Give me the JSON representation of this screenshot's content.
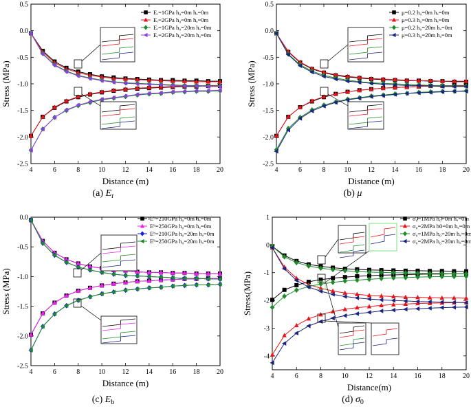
{
  "chart_data": [
    {
      "type": "line",
      "caption": "(a) Eᵣ",
      "caption_prefix": "(a) ",
      "caption_symbol": "E",
      "caption_sub": "r",
      "xlabel": "Distance (m)",
      "ylabel": "Stress (MPa)",
      "xlim": [
        4,
        20
      ],
      "ylim": [
        -2.5,
        0.5
      ],
      "xticks": [
        4,
        6,
        8,
        10,
        12,
        14,
        16,
        18,
        20
      ],
      "yticks": [
        0.5,
        0.0,
        -0.5,
        -1.0,
        -1.5,
        -2.0,
        -2.5
      ],
      "yticklabels": [
        "0.5",
        "0.0",
        "-0.5",
        "-1.0",
        "-1.5",
        "-2.0",
        "-2.5"
      ],
      "legend": [
        "Eᵣ=1GPa h₀=0m hₐ=0m",
        "Eᵣ=2GPa h₀=0m hₐ=0m",
        "Eᵣ=1GPa h₀=20m hₐ=0m",
        "Eᵣ=2GPa h₀=20m hₐ=0m"
      ],
      "x": [
        4,
        5,
        6,
        7,
        8,
        9,
        10,
        11,
        12,
        13,
        14,
        15,
        16,
        17,
        18,
        19,
        20
      ],
      "series": [
        {
          "name": "Eᵣ=1GPa h₀=0m hₐ=0m",
          "color": "#000000",
          "marker": "square",
          "upper": [
            -0.05,
            -0.38,
            -0.58,
            -0.7,
            -0.77,
            -0.82,
            -0.86,
            -0.88,
            -0.9,
            -0.91,
            -0.92,
            -0.93,
            -0.93,
            -0.94,
            -0.94,
            -0.95,
            -0.95
          ],
          "lower": [
            -1.98,
            -1.62,
            -1.45,
            -1.33,
            -1.25,
            -1.2,
            -1.16,
            -1.13,
            -1.11,
            -1.09,
            -1.08,
            -1.07,
            -1.06,
            -1.05,
            -1.05,
            -1.04,
            -1.04
          ]
        },
        {
          "name": "Eᵣ=2GPa h₀=0m hₐ=0m",
          "color": "#e8141c",
          "marker": "triangle",
          "upper": [
            -0.05,
            -0.4,
            -0.6,
            -0.72,
            -0.79,
            -0.84,
            -0.87,
            -0.9,
            -0.91,
            -0.92,
            -0.93,
            -0.94,
            -0.95,
            -0.95,
            -0.96,
            -0.96,
            -0.96
          ],
          "lower": [
            -1.98,
            -1.62,
            -1.44,
            -1.32,
            -1.24,
            -1.19,
            -1.15,
            -1.12,
            -1.1,
            -1.08,
            -1.07,
            -1.06,
            -1.05,
            -1.04,
            -1.04,
            -1.03,
            -1.03
          ]
        },
        {
          "name": "Eᵣ=1GPa h₀=20m hₐ=0m",
          "color": "#1e8a2a",
          "marker": "diamond",
          "upper": [
            -0.05,
            -0.43,
            -0.64,
            -0.76,
            -0.84,
            -0.89,
            -0.93,
            -0.96,
            -0.98,
            -0.99,
            -1.0,
            -1.01,
            -1.02,
            -1.03,
            -1.03,
            -1.04,
            -1.04
          ],
          "lower": [
            -2.25,
            -1.85,
            -1.63,
            -1.5,
            -1.41,
            -1.35,
            -1.3,
            -1.27,
            -1.24,
            -1.21,
            -1.19,
            -1.18,
            -1.16,
            -1.15,
            -1.14,
            -1.14,
            -1.13
          ]
        },
        {
          "name": "Eᵣ=2GPa h₀=20m hₐ=0m",
          "color": "#8a3fe0",
          "marker": "triangle-left",
          "upper": [
            -0.05,
            -0.44,
            -0.65,
            -0.77,
            -0.85,
            -0.9,
            -0.94,
            -0.97,
            -0.99,
            -1.0,
            -1.01,
            -1.02,
            -1.03,
            -1.04,
            -1.04,
            -1.05,
            -1.05
          ],
          "lower": [
            -2.25,
            -1.85,
            -1.63,
            -1.49,
            -1.4,
            -1.34,
            -1.29,
            -1.26,
            -1.23,
            -1.2,
            -1.18,
            -1.17,
            -1.15,
            -1.14,
            -1.13,
            -1.13,
            -1.12
          ]
        }
      ]
    },
    {
      "type": "line",
      "caption": "(b) μ",
      "caption_prefix": "(b) ",
      "caption_symbol": "μ",
      "caption_sub": "",
      "xlabel": "Distance (m)",
      "ylabel": "Stress (MPa)",
      "xlim": [
        4,
        20
      ],
      "ylim": [
        -2.5,
        0.5
      ],
      "xticks": [
        4,
        6,
        8,
        10,
        12,
        14,
        16,
        18,
        20
      ],
      "yticks": [
        0.5,
        0.0,
        -0.5,
        -1.0,
        -1.5,
        -2.0,
        -2.5
      ],
      "yticklabels": [
        "0.5",
        "0.0",
        "-0.5",
        "-1.0",
        "-1.5",
        "-2.0",
        "-2.5"
      ],
      "legend": [
        "μ=0.2 h₀=0m hₐ=0m",
        "μ=0.3 h₀=0m hₐ=0m",
        "μ=0.2 h₀=20m hₐ=0m",
        "μ=0.3 h₀=20m hₐ=0m"
      ],
      "x": [
        4,
        5,
        6,
        7,
        8,
        9,
        10,
        11,
        12,
        13,
        14,
        15,
        16,
        17,
        18,
        19,
        20
      ],
      "series": [
        {
          "name": "μ=0.2 h₀=0m hₐ=0m",
          "color": "#000000",
          "marker": "square",
          "upper": [
            -0.05,
            -0.4,
            -0.6,
            -0.72,
            -0.79,
            -0.84,
            -0.87,
            -0.89,
            -0.91,
            -0.92,
            -0.93,
            -0.94,
            -0.94,
            -0.95,
            -0.95,
            -0.96,
            -0.96
          ],
          "lower": [
            -1.98,
            -1.62,
            -1.44,
            -1.33,
            -1.25,
            -1.19,
            -1.15,
            -1.12,
            -1.1,
            -1.08,
            -1.07,
            -1.06,
            -1.05,
            -1.04,
            -1.04,
            -1.03,
            -1.03
          ]
        },
        {
          "name": "μ=0.3 h₀=0m hₐ=0m",
          "color": "#e8141c",
          "marker": "triangle",
          "upper": [
            -0.05,
            -0.39,
            -0.59,
            -0.71,
            -0.78,
            -0.83,
            -0.86,
            -0.88,
            -0.9,
            -0.91,
            -0.92,
            -0.93,
            -0.94,
            -0.94,
            -0.95,
            -0.95,
            -0.95
          ],
          "lower": [
            -1.98,
            -1.62,
            -1.44,
            -1.32,
            -1.24,
            -1.19,
            -1.15,
            -1.12,
            -1.1,
            -1.08,
            -1.07,
            -1.06,
            -1.05,
            -1.04,
            -1.04,
            -1.03,
            -1.03
          ]
        },
        {
          "name": "μ=0.2 h₀=20m hₐ=0m",
          "color": "#1e8a2a",
          "marker": "diamond",
          "upper": [
            -0.05,
            -0.44,
            -0.64,
            -0.76,
            -0.84,
            -0.89,
            -0.93,
            -0.96,
            -0.98,
            -0.99,
            -1.0,
            -1.01,
            -1.02,
            -1.03,
            -1.03,
            -1.04,
            -1.04
          ],
          "lower": [
            -2.24,
            -1.84,
            -1.63,
            -1.49,
            -1.4,
            -1.34,
            -1.29,
            -1.26,
            -1.23,
            -1.21,
            -1.19,
            -1.18,
            -1.16,
            -1.15,
            -1.14,
            -1.14,
            -1.13
          ]
        },
        {
          "name": "μ=0.3 h₀=20m hₐ=0m",
          "color": "#1a237e",
          "marker": "triangle-left",
          "upper": [
            -0.05,
            -0.45,
            -0.66,
            -0.78,
            -0.86,
            -0.91,
            -0.95,
            -0.97,
            -0.99,
            -1.01,
            -1.02,
            -1.03,
            -1.03,
            -1.04,
            -1.05,
            -1.05,
            -1.05
          ],
          "lower": [
            -2.27,
            -1.87,
            -1.65,
            -1.51,
            -1.42,
            -1.35,
            -1.3,
            -1.27,
            -1.24,
            -1.22,
            -1.2,
            -1.18,
            -1.17,
            -1.16,
            -1.15,
            -1.14,
            -1.14
          ]
        }
      ]
    },
    {
      "type": "line",
      "caption": "(c) Eᵇ",
      "caption_prefix": "(c) ",
      "caption_symbol": "E",
      "caption_sub": "b",
      "xlabel": "Distance (m)",
      "ylabel": "Stress (MPa)",
      "xlim": [
        4,
        20
      ],
      "ylim": [
        -2.5,
        0.0
      ],
      "xticks": [
        4,
        6,
        8,
        10,
        12,
        14,
        16,
        18,
        20
      ],
      "yticks": [
        0.0,
        -0.5,
        -1.0,
        -1.5,
        -2.0,
        -2.5
      ],
      "yticklabels": [
        "0.0",
        "-0.5",
        "-1.0",
        "-1.5",
        "-2.0",
        "-2.5"
      ],
      "legend": [
        "Eᵇ=210GPa h₀=0m  hₐ=0m",
        "Eᵇ=250GPa h₀=0m  hₐ=0m",
        "Eᵇ=210GPa h₀=20m  hₐ=0m",
        "Eᵇ=250GPa h₀=20m  hₐ=0m"
      ],
      "x": [
        4,
        5,
        6,
        7,
        8,
        9,
        10,
        11,
        12,
        13,
        14,
        15,
        16,
        17,
        18,
        19,
        20
      ],
      "series": [
        {
          "name": "Eᵇ=210GPa h₀=0m  hₐ=0m",
          "color": "#000000",
          "marker": "square",
          "upper": [
            -0.05,
            -0.4,
            -0.6,
            -0.71,
            -0.78,
            -0.83,
            -0.86,
            -0.89,
            -0.9,
            -0.92,
            -0.93,
            -0.93,
            -0.94,
            -0.94,
            -0.95,
            -0.95,
            -0.95
          ],
          "lower": [
            -1.98,
            -1.62,
            -1.44,
            -1.32,
            -1.24,
            -1.19,
            -1.15,
            -1.12,
            -1.1,
            -1.08,
            -1.07,
            -1.06,
            -1.05,
            -1.04,
            -1.04,
            -1.03,
            -1.03
          ]
        },
        {
          "name": "Eᵇ=250GPa h₀=0m  hₐ=0m",
          "color": "#ee22ee",
          "marker": "triangle",
          "upper": [
            -0.05,
            -0.4,
            -0.6,
            -0.71,
            -0.78,
            -0.83,
            -0.86,
            -0.89,
            -0.9,
            -0.92,
            -0.93,
            -0.93,
            -0.94,
            -0.94,
            -0.95,
            -0.95,
            -0.95
          ],
          "lower": [
            -1.98,
            -1.62,
            -1.44,
            -1.32,
            -1.24,
            -1.19,
            -1.15,
            -1.12,
            -1.1,
            -1.08,
            -1.07,
            -1.06,
            -1.05,
            -1.04,
            -1.04,
            -1.03,
            -1.03
          ]
        },
        {
          "name": "Eᵇ=210GPa h₀=20m  hₐ=0m",
          "color": "#1a1aee",
          "marker": "diamond",
          "upper": [
            -0.05,
            -0.44,
            -0.64,
            -0.76,
            -0.84,
            -0.89,
            -0.93,
            -0.96,
            -0.98,
            -0.99,
            -1.0,
            -1.01,
            -1.02,
            -1.03,
            -1.03,
            -1.04,
            -1.04
          ],
          "lower": [
            -2.24,
            -1.84,
            -1.63,
            -1.49,
            -1.4,
            -1.34,
            -1.29,
            -1.26,
            -1.23,
            -1.21,
            -1.19,
            -1.18,
            -1.16,
            -1.15,
            -1.14,
            -1.14,
            -1.13
          ]
        },
        {
          "name": "Eᵇ=250GPa h₀=20m  hₐ=0m",
          "color": "#1e8a2a",
          "marker": "triangle-left",
          "upper": [
            -0.05,
            -0.44,
            -0.64,
            -0.76,
            -0.84,
            -0.89,
            -0.93,
            -0.96,
            -0.98,
            -0.99,
            -1.0,
            -1.01,
            -1.02,
            -1.03,
            -1.03,
            -1.04,
            -1.04
          ],
          "lower": [
            -2.24,
            -1.84,
            -1.63,
            -1.49,
            -1.4,
            -1.34,
            -1.29,
            -1.26,
            -1.23,
            -1.21,
            -1.19,
            -1.18,
            -1.16,
            -1.15,
            -1.14,
            -1.14,
            -1.13
          ]
        }
      ]
    },
    {
      "type": "line",
      "caption": "(d) σ₀",
      "caption_prefix": "(d) ",
      "caption_symbol": "σ",
      "caption_sub": "0",
      "xlabel": "Distance(m)",
      "ylabel": "Stress(MPa)",
      "xlim": [
        4,
        20
      ],
      "ylim": [
        -4.5,
        1.0
      ],
      "xticks": [
        4,
        6,
        8,
        10,
        12,
        14,
        16,
        18,
        20
      ],
      "yticks": [
        1,
        0,
        -1,
        -2,
        -3,
        -4
      ],
      "yticklabels": [
        "1",
        "0",
        "-1",
        "-2",
        "-3",
        "-4"
      ],
      "legend": [
        "σ₀=1MPa h₀=0m hₐ=0m",
        "σ₀=2MPa h0=0m hₐ=0m",
        "σ₀=1MPa h₀=20m hₐ=0m",
        "σ₀=2MPa h₀=20m hₐ=0m"
      ],
      "x": [
        4,
        5,
        6,
        7,
        8,
        9,
        10,
        11,
        12,
        13,
        14,
        15,
        16,
        17,
        18,
        19,
        20
      ],
      "series": [
        {
          "name": "σ₀=1MPa h₀=0m hₐ=0m",
          "color": "#000000",
          "marker": "square",
          "upper": [
            -0.05,
            -0.38,
            -0.58,
            -0.7,
            -0.77,
            -0.82,
            -0.86,
            -0.88,
            -0.9,
            -0.91,
            -0.92,
            -0.93,
            -0.93,
            -0.94,
            -0.94,
            -0.95,
            -0.95
          ],
          "lower": [
            -1.98,
            -1.62,
            -1.45,
            -1.33,
            -1.25,
            -1.2,
            -1.16,
            -1.13,
            -1.11,
            -1.09,
            -1.08,
            -1.07,
            -1.06,
            -1.05,
            -1.05,
            -1.04,
            -1.04
          ]
        },
        {
          "name": "σ₀=2MPa h0=0m hₐ=0m",
          "color": "#e8141c",
          "marker": "triangle",
          "upper": [
            -0.1,
            -0.8,
            -1.2,
            -1.43,
            -1.56,
            -1.66,
            -1.73,
            -1.78,
            -1.82,
            -1.84,
            -1.86,
            -1.88,
            -1.89,
            -1.9,
            -1.91,
            -1.91,
            -1.92
          ],
          "lower": [
            -3.96,
            -3.26,
            -2.9,
            -2.66,
            -2.51,
            -2.4,
            -2.32,
            -2.26,
            -2.22,
            -2.18,
            -2.15,
            -2.13,
            -2.11,
            -2.1,
            -2.09,
            -2.08,
            -2.07
          ]
        },
        {
          "name": "σ₀=1MPa h₀=20m hₐ=0m",
          "color": "#1e8a2a",
          "marker": "diamond",
          "upper": [
            -0.05,
            -0.43,
            -0.64,
            -0.76,
            -0.84,
            -0.89,
            -0.93,
            -0.96,
            -0.98,
            -0.99,
            -1.0,
            -1.01,
            -1.02,
            -1.03,
            -1.03,
            -1.04,
            -1.04
          ],
          "lower": [
            -2.25,
            -1.85,
            -1.63,
            -1.5,
            -1.41,
            -1.35,
            -1.3,
            -1.27,
            -1.24,
            -1.21,
            -1.19,
            -1.18,
            -1.16,
            -1.15,
            -1.14,
            -1.14,
            -1.13
          ]
        },
        {
          "name": "σ₀=2MPa h₀=20m hₐ=0m",
          "color": "#1a237e",
          "marker": "triangle-left",
          "upper": [
            -0.1,
            -0.86,
            -1.28,
            -1.52,
            -1.67,
            -1.78,
            -1.86,
            -1.91,
            -1.95,
            -1.98,
            -2.0,
            -2.02,
            -2.04,
            -2.05,
            -2.06,
            -2.07,
            -2.08
          ],
          "lower": [
            -4.25,
            -3.55,
            -3.18,
            -2.92,
            -2.76,
            -2.64,
            -2.55,
            -2.48,
            -2.43,
            -2.38,
            -2.35,
            -2.32,
            -2.3,
            -2.28,
            -2.26,
            -2.25,
            -2.24
          ]
        }
      ]
    }
  ]
}
